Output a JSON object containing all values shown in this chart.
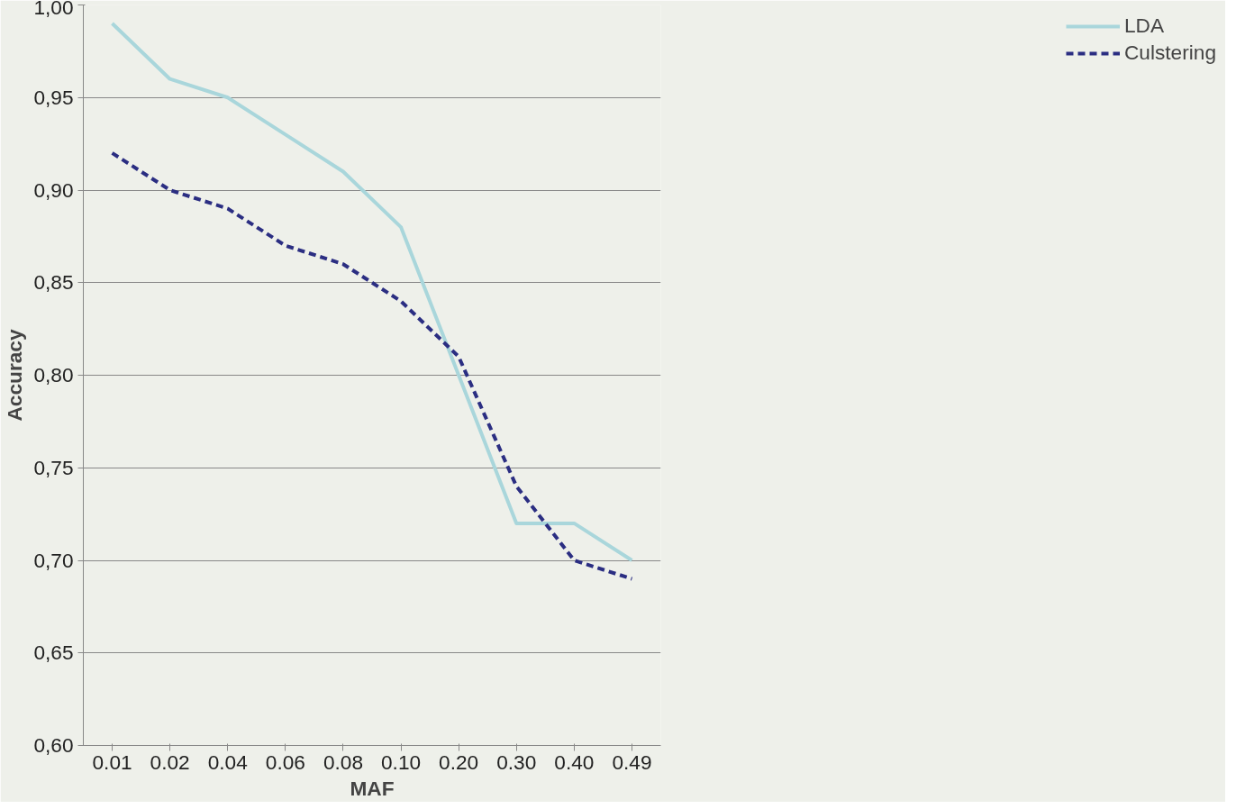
{
  "chart_data": {
    "type": "line",
    "xlabel": "MAF",
    "ylabel": "Accuracy",
    "categories": [
      "0.01",
      "0.02",
      "0.04",
      "0.06",
      "0.08",
      "0.10",
      "0.20",
      "0.30",
      "0.40",
      "0.49"
    ],
    "series": [
      {
        "name": "LDA",
        "color": "#a9d6db",
        "line_style": "solid",
        "values": [
          0.99,
          0.96,
          0.95,
          0.93,
          0.91,
          0.88,
          0.8,
          0.72,
          0.72,
          0.7
        ]
      },
      {
        "name": "Culstering",
        "color": "#2b2e82",
        "line_style": "dashed",
        "values": [
          0.92,
          0.9,
          0.89,
          0.87,
          0.86,
          0.84,
          0.81,
          0.74,
          0.7,
          0.69
        ]
      }
    ],
    "ylim": [
      0.6,
      1.0
    ],
    "yticks": [
      {
        "value": 0.6,
        "label": "0,60"
      },
      {
        "value": 0.65,
        "label": "0,65"
      },
      {
        "value": 0.7,
        "label": "0,70"
      },
      {
        "value": 0.75,
        "label": "0,75"
      },
      {
        "value": 0.8,
        "label": "0,80"
      },
      {
        "value": 0.85,
        "label": "0,85"
      },
      {
        "value": 0.9,
        "label": "0,90"
      },
      {
        "value": 0.95,
        "label": "0,95"
      },
      {
        "value": 1.0,
        "label": "1,00"
      }
    ],
    "grid": "y",
    "legend": "right",
    "marker": "none"
  }
}
